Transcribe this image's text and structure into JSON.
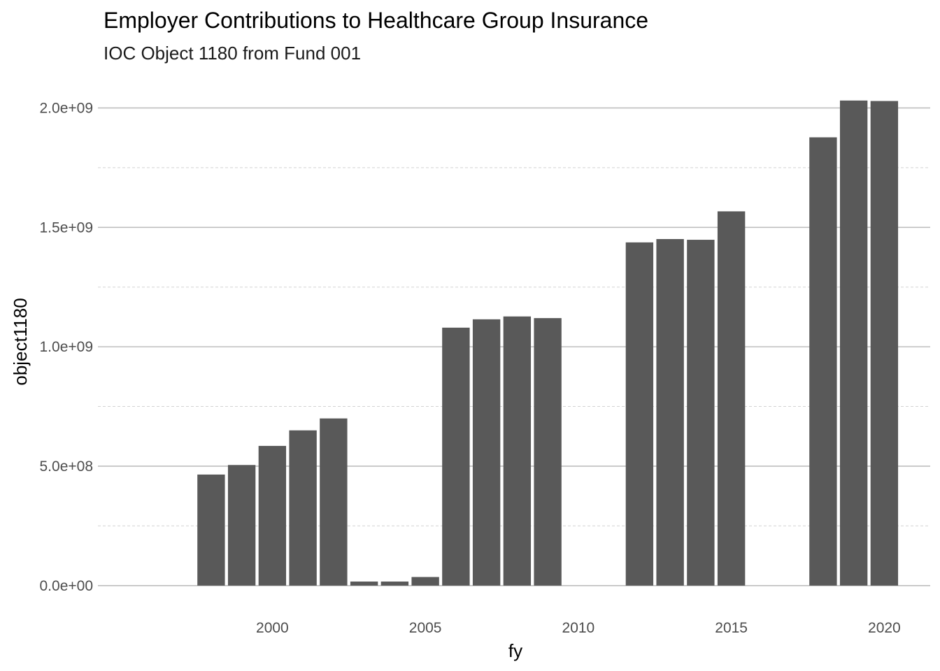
{
  "chart_data": {
    "type": "bar",
    "title": "Employer Contributions to Healthcare Group Insurance",
    "subtitle": "IOC Object 1180 from Fund 001",
    "xlabel": "fy",
    "ylabel": "object1180",
    "x": [
      1998,
      1999,
      2000,
      2001,
      2002,
      2003,
      2004,
      2005,
      2006,
      2007,
      2008,
      2009,
      2012,
      2013,
      2014,
      2015,
      2018,
      2019,
      2020
    ],
    "values": [
      465000000,
      505000000,
      585000000,
      650000000,
      700000000,
      17000000,
      17000000,
      36000000,
      1080000000,
      1115000000,
      1127000000,
      1120000000,
      1437000000,
      1451000000,
      1448000000,
      1567000000,
      1877000000,
      2031000000,
      2029000000
    ],
    "xlim": [
      1994.3,
      2021.5
    ],
    "ylim": [
      -100000000,
      2130000000
    ],
    "x_ticks": [
      2000,
      2005,
      2010,
      2015,
      2020
    ],
    "x_tick_labels": [
      "2000",
      "2005",
      "2010",
      "2015",
      "2020"
    ],
    "y_ticks": [
      0,
      500000000,
      1000000000,
      1500000000,
      2000000000
    ],
    "y_tick_labels": [
      "0.0e+00",
      "5.0e+08",
      "1.0e+09",
      "1.5e+09",
      "2.0e+09"
    ],
    "y_minor_ticks": [
      250000000,
      750000000,
      1250000000,
      1750000000
    ],
    "grid": true,
    "bar_color": "#595959",
    "legend": "none"
  }
}
